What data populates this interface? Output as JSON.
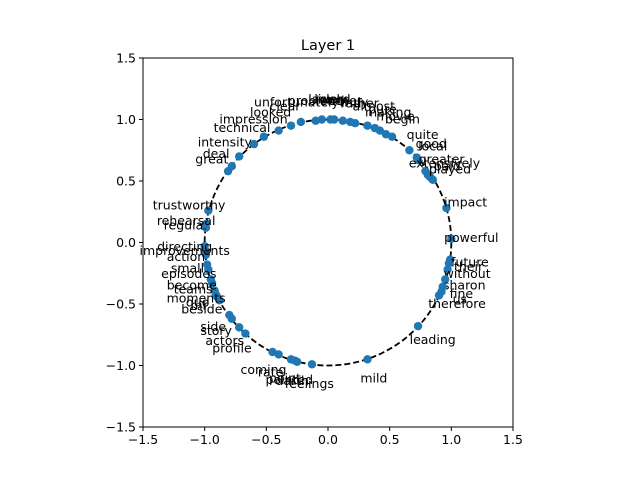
{
  "chart_data": {
    "type": "scatter",
    "title": "Layer 1",
    "xlim": [
      -1.5,
      1.5
    ],
    "ylim": [
      -1.5,
      1.5
    ],
    "x_ticks": [
      "−1.5",
      "−1.0",
      "−0.5",
      "0.0",
      "0.5",
      "1.0",
      "1.5"
    ],
    "y_ticks": [
      "−1.5",
      "−1.0",
      "−0.5",
      "0.0",
      "0.5",
      "1.0",
      "1.5"
    ],
    "x_tick_values": [
      -1.5,
      -1.0,
      -0.5,
      0.0,
      0.5,
      1.0,
      1.5
    ],
    "y_tick_values": [
      -1.5,
      -1.0,
      -0.5,
      0.0,
      0.5,
      1.0,
      1.5
    ],
    "reference_curve": "unit circle (dashed)",
    "grid": false,
    "point_color": "#1f77b4",
    "points": [
      {
        "word": "unfortunately",
        "x": -0.22,
        "y": 0.98
      },
      {
        "word": "clear",
        "x": -0.3,
        "y": 0.95
      },
      {
        "word": "problem",
        "x": -0.1,
        "y": 0.99
      },
      {
        "word": "lack",
        "x": -0.05,
        "y": 1.0
      },
      {
        "word": "lively",
        "x": 0.02,
        "y": 1.0
      },
      {
        "word": "word",
        "x": 0.05,
        "y": 1.0
      },
      {
        "word": "other",
        "x": 0.12,
        "y": 0.99
      },
      {
        "word": "truly",
        "x": 0.18,
        "y": 0.98
      },
      {
        "word": "rather",
        "x": 0.22,
        "y": 0.97
      },
      {
        "word": "almost",
        "x": 0.32,
        "y": 0.95
      },
      {
        "word": "pure",
        "x": 0.38,
        "y": 0.93
      },
      {
        "word": "making",
        "x": 0.42,
        "y": 0.91
      },
      {
        "word": "movie",
        "x": 0.47,
        "y": 0.88
      },
      {
        "word": "begin",
        "x": 0.52,
        "y": 0.86
      },
      {
        "word": "quite",
        "x": 0.66,
        "y": 0.75
      },
      {
        "word": "good",
        "x": 0.72,
        "y": 0.69
      },
      {
        "word": "local",
        "x": 0.73,
        "y": 0.67
      },
      {
        "word": "greater",
        "x": 0.79,
        "y": 0.58
      },
      {
        "word": "extensively",
        "x": 0.81,
        "y": 0.55
      },
      {
        "word": "paid",
        "x": 0.83,
        "y": 0.53
      },
      {
        "word": "played",
        "x": 0.85,
        "y": 0.51
      },
      {
        "word": "impact",
        "x": 0.96,
        "y": 0.28
      },
      {
        "word": "powerful",
        "x": 1.0,
        "y": 0.03
      },
      {
        "word": "future",
        "x": 0.99,
        "y": -0.14
      },
      {
        "word": "their",
        "x": 0.98,
        "y": -0.17
      },
      {
        "word": "without",
        "x": 0.97,
        "y": -0.22
      },
      {
        "word": "sharon",
        "x": 0.95,
        "y": -0.3
      },
      {
        "word": "fine",
        "x": 0.93,
        "y": -0.36
      },
      {
        "word": "us",
        "x": 0.92,
        "y": -0.4
      },
      {
        "word": "therefore",
        "x": 0.9,
        "y": -0.43
      },
      {
        "word": "leading",
        "x": 0.73,
        "y": -0.68
      },
      {
        "word": "mild",
        "x": 0.32,
        "y": -0.95
      },
      {
        "word": "feelings",
        "x": -0.13,
        "y": -0.99
      },
      {
        "word": "darth",
        "x": -0.25,
        "y": -0.97
      },
      {
        "word": "pointed",
        "x": -0.27,
        "y": -0.96
      },
      {
        "word": "point",
        "x": -0.3,
        "y": -0.95
      },
      {
        "word": "rate",
        "x": -0.4,
        "y": -0.91
      },
      {
        "word": "coming",
        "x": -0.45,
        "y": -0.89
      },
      {
        "word": "profile",
        "x": -0.67,
        "y": -0.74
      },
      {
        "word": "actors",
        "x": -0.72,
        "y": -0.69
      },
      {
        "word": "story",
        "x": -0.78,
        "y": -0.62
      },
      {
        "word": "side",
        "x": -0.8,
        "y": -0.59
      },
      {
        "word": "beside",
        "x": -0.88,
        "y": -0.47
      },
      {
        "word": "mr",
        "x": -0.9,
        "y": -0.44
      },
      {
        "word": "quo",
        "x": -0.91,
        "y": -0.42
      },
      {
        "word": "moments",
        "x": -0.92,
        "y": -0.39
      },
      {
        "word": "teams",
        "x": -0.94,
        "y": -0.33
      },
      {
        "word": "become",
        "x": -0.95,
        "y": -0.3
      },
      {
        "word": "episodes",
        "x": -0.97,
        "y": -0.22
      },
      {
        "word": "small",
        "x": -0.98,
        "y": -0.18
      },
      {
        "word": "action",
        "x": -0.99,
        "y": -0.1
      },
      {
        "word": "improvements",
        "x": -1.0,
        "y": -0.06
      },
      {
        "word": "directing",
        "x": -1.0,
        "y": -0.03
      },
      {
        "word": "regular",
        "x": -0.99,
        "y": 0.12
      },
      {
        "word": "rehearsal",
        "x": -0.99,
        "y": 0.15
      },
      {
        "word": "trustworthy",
        "x": -0.97,
        "y": 0.26
      },
      {
        "word": "great",
        "x": -0.81,
        "y": 0.58
      },
      {
        "word": "deal",
        "x": -0.78,
        "y": 0.62
      },
      {
        "word": "intensity",
        "x": -0.72,
        "y": 0.7
      },
      {
        "word": "technical",
        "x": -0.6,
        "y": 0.8
      },
      {
        "word": "impression",
        "x": -0.52,
        "y": 0.86
      },
      {
        "word": "looked",
        "x": -0.4,
        "y": 0.91
      }
    ]
  }
}
